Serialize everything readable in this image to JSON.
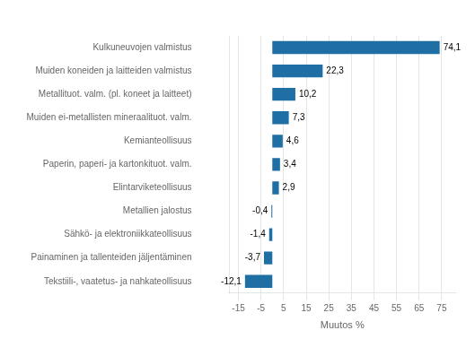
{
  "chart_data": {
    "type": "bar",
    "orientation": "horizontal",
    "categories": [
      "Tekstiili-, vaatetus- ja nahkateollisuus",
      "Painaminen ja tallenteiden jäljentäminen",
      "Sähkö- ja elektroniikkateollisuus",
      "Metallien jalostus",
      "Elintarviketeollisuus",
      "Paperin, paperi- ja kartonkituot. valm.",
      "Kemianteollisuus",
      "Muiden ei-metallisten mineraalituot. valm.",
      "Metallituot. valm. (pl. koneet ja laitteet)",
      "Muiden koneiden ja laitteiden valmistus",
      "Kulkuneuvojen valmistus"
    ],
    "values": [
      -12.1,
      -3.7,
      -1.4,
      -0.4,
      2.9,
      3.4,
      4.6,
      7.3,
      10.2,
      22.3,
      74.1
    ],
    "value_labels": [
      "-12,1",
      "-3,7",
      "-1,4",
      "-0,4",
      "2,9",
      "3,4",
      "4,6",
      "7,3",
      "10,2",
      "22,3",
      "74,1"
    ],
    "data_labels": true,
    "color": "#1f6fa5",
    "xlabel": "Muutos %",
    "xlim": [
      -19,
      81
    ],
    "xticks": [
      -15,
      -5,
      5,
      15,
      25,
      35,
      45,
      55,
      65,
      75
    ],
    "grid": true
  }
}
